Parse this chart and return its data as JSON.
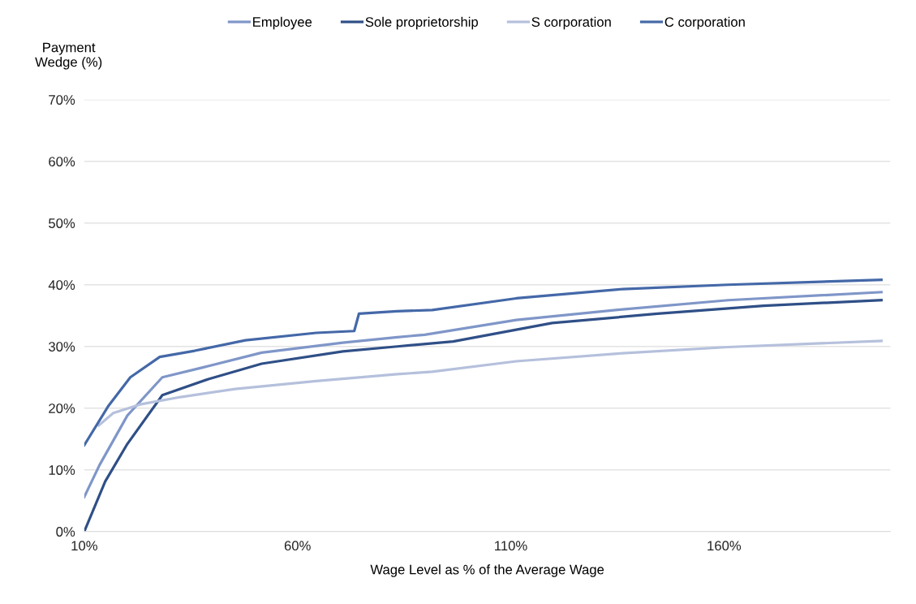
{
  "chart_data": {
    "type": "line",
    "ylabel": "Payment\nWedge (%)",
    "xlabel": "Wage Level as % of the Average Wage",
    "xlim": [
      10,
      199
    ],
    "xticks": [
      {
        "value": 10,
        "label": "10%"
      },
      {
        "value": 60,
        "label": "60%"
      },
      {
        "value": 110,
        "label": "110%"
      },
      {
        "value": 160,
        "label": "160%"
      }
    ],
    "ylim": [
      0,
      70
    ],
    "yticks": [
      {
        "value": 0,
        "label": "0%"
      },
      {
        "value": 10,
        "label": "10%"
      },
      {
        "value": 20,
        "label": "20%"
      },
      {
        "value": 30,
        "label": "30%"
      },
      {
        "value": 40,
        "label": "40%"
      },
      {
        "value": 50,
        "label": "50%"
      },
      {
        "value": 60,
        "label": "60%"
      },
      {
        "value": 70,
        "label": "70%"
      }
    ],
    "grid": "y",
    "legend": "top",
    "marker": "none",
    "line_style": "solid",
    "series": [
      {
        "name": "Employee",
        "color": "#7f96c8",
        "x": [
          10,
          13.6,
          20.1,
          28.3,
          37.8,
          51.6,
          70.6,
          83.4,
          89.8,
          111.3,
          136.2,
          161,
          196.9
        ],
        "values": [
          5.6,
          10.8,
          18.8,
          25.0,
          26.6,
          29.0,
          30.6,
          31.5,
          31.9,
          34.3,
          36.0,
          37.5,
          38.8
        ]
      },
      {
        "name": "Sole proprietorship",
        "color": "#2f4f87",
        "x": [
          10,
          14.9,
          20.1,
          28.3,
          39.1,
          51.6,
          70.6,
          83.4,
          96.5,
          119.7,
          144.4,
          169.3,
          196.9
        ],
        "values": [
          0,
          8.1,
          14.2,
          22.1,
          24.7,
          27.2,
          29.2,
          30.0,
          30.8,
          33.8,
          35.3,
          36.6,
          37.5
        ]
      },
      {
        "name": "S corporation",
        "color": "#b5c0dc",
        "x": [
          13.4,
          16.8,
          23.1,
          32.6,
          45.4,
          64.4,
          83.4,
          91.6,
          111.3,
          136.2,
          161,
          196.9
        ],
        "values": [
          17.2,
          19.2,
          20.6,
          21.8,
          23.1,
          24.4,
          25.5,
          25.9,
          27.6,
          28.9,
          29.9,
          30.9
        ]
      },
      {
        "name": "C corporation",
        "color": "#4468a8",
        "x": [
          10,
          15.7,
          20.8,
          27.7,
          35.9,
          47.8,
          64.4,
          73.3,
          74.4,
          83.3,
          91.6,
          111.3,
          136.2,
          160.9,
          196.9
        ],
        "values": [
          14.0,
          20.4,
          25.0,
          28.3,
          29.3,
          31.0,
          32.2,
          32.5,
          35.3,
          35.7,
          35.9,
          37.8,
          39.3,
          40.0,
          40.8
        ]
      }
    ]
  }
}
